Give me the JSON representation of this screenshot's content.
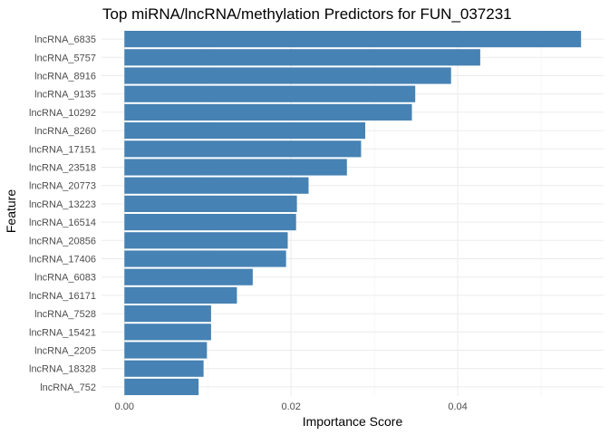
{
  "chart_data": {
    "type": "bar",
    "orientation": "horizontal",
    "title": "Top miRNA/lncRNA/methylation Predictors for FUN_037231",
    "xlabel": "Importance Score",
    "ylabel": "Feature",
    "categories": [
      "lncRNA_6835",
      "lncRNA_5757",
      "lncRNA_8916",
      "lncRNA_9135",
      "lncRNA_10292",
      "lncRNA_8260",
      "lncRNA_17151",
      "lncRNA_23518",
      "lncRNA_20773",
      "lncRNA_13223",
      "lncRNA_16514",
      "lncRNA_20856",
      "lncRNA_17406",
      "lncRNA_6083",
      "lncRNA_16171",
      "lncRNA_7528",
      "lncRNA_15421",
      "lncRNA_2205",
      "lncRNA_18328",
      "lncRNA_752"
    ],
    "values": [
      0.0548,
      0.0427,
      0.0392,
      0.0349,
      0.0345,
      0.0289,
      0.0284,
      0.0267,
      0.0221,
      0.0207,
      0.0206,
      0.0196,
      0.0194,
      0.0154,
      0.0135,
      0.0104,
      0.0104,
      0.0099,
      0.0095,
      0.0089
    ],
    "xlim": [
      -0.00275,
      0.0575
    ],
    "xticks": [
      0.0,
      0.02,
      0.04
    ],
    "xtick_labels": [
      "0.00",
      "0.02",
      "0.04"
    ],
    "grid": true,
    "legend": "none",
    "bar_color": "#4682b4",
    "grid_color": "#ebebeb"
  }
}
